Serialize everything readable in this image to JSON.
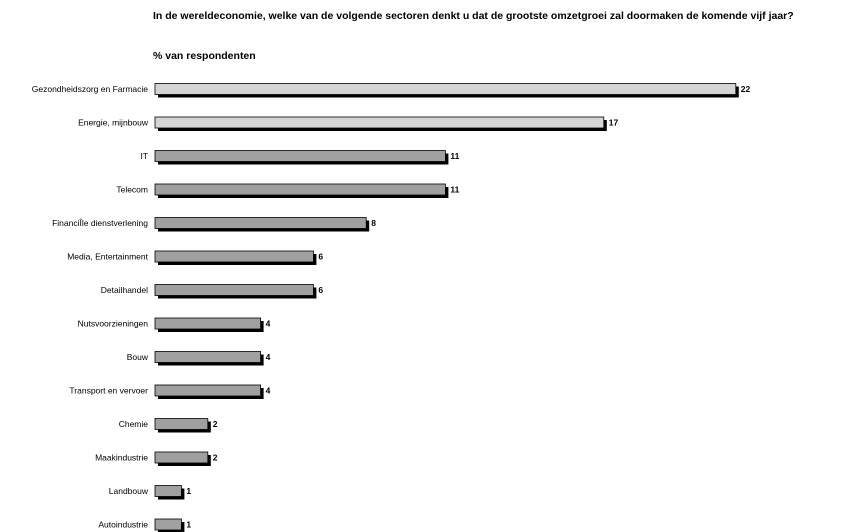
{
  "header": {
    "title": "In de wereldeconomie, welke van de volgende sectoren denkt u dat de grootste omzetgroei zal  doormaken de komende vijf jaar?",
    "subtitle": "% van respondenten"
  },
  "chart_data": {
    "type": "bar",
    "orientation": "horizontal",
    "title": "In de wereldeconomie, welke van de volgende sectoren denkt u dat de grootste omzetgroei zal  doormaken de komende vijf jaar?",
    "subtitle": "% van respondenten",
    "categories": [
      "Gezondheidszorg en Farmacie",
      "Energie, mijnbouw",
      "IT",
      "Telecom",
      "FinanciÎle dienstverlening",
      "Media, Entertainment",
      "Detailhandel",
      "Nutsvoorzieningen",
      "Bouw",
      "Transport en vervoer",
      "Chemie",
      "Maakindustrie",
      "Landbouw",
      "Autoindustrie"
    ],
    "values": [
      22,
      17,
      11,
      11,
      8,
      6,
      6,
      4,
      4,
      4,
      2,
      2,
      1,
      1
    ],
    "highlight_count": 2,
    "colors": {
      "highlight": "#d4d4d4",
      "normal": "#a0a0a0",
      "shadow": "#000000",
      "outline": "#000000"
    },
    "xlim": [
      0,
      22
    ],
    "grid": false,
    "legend": "none"
  }
}
